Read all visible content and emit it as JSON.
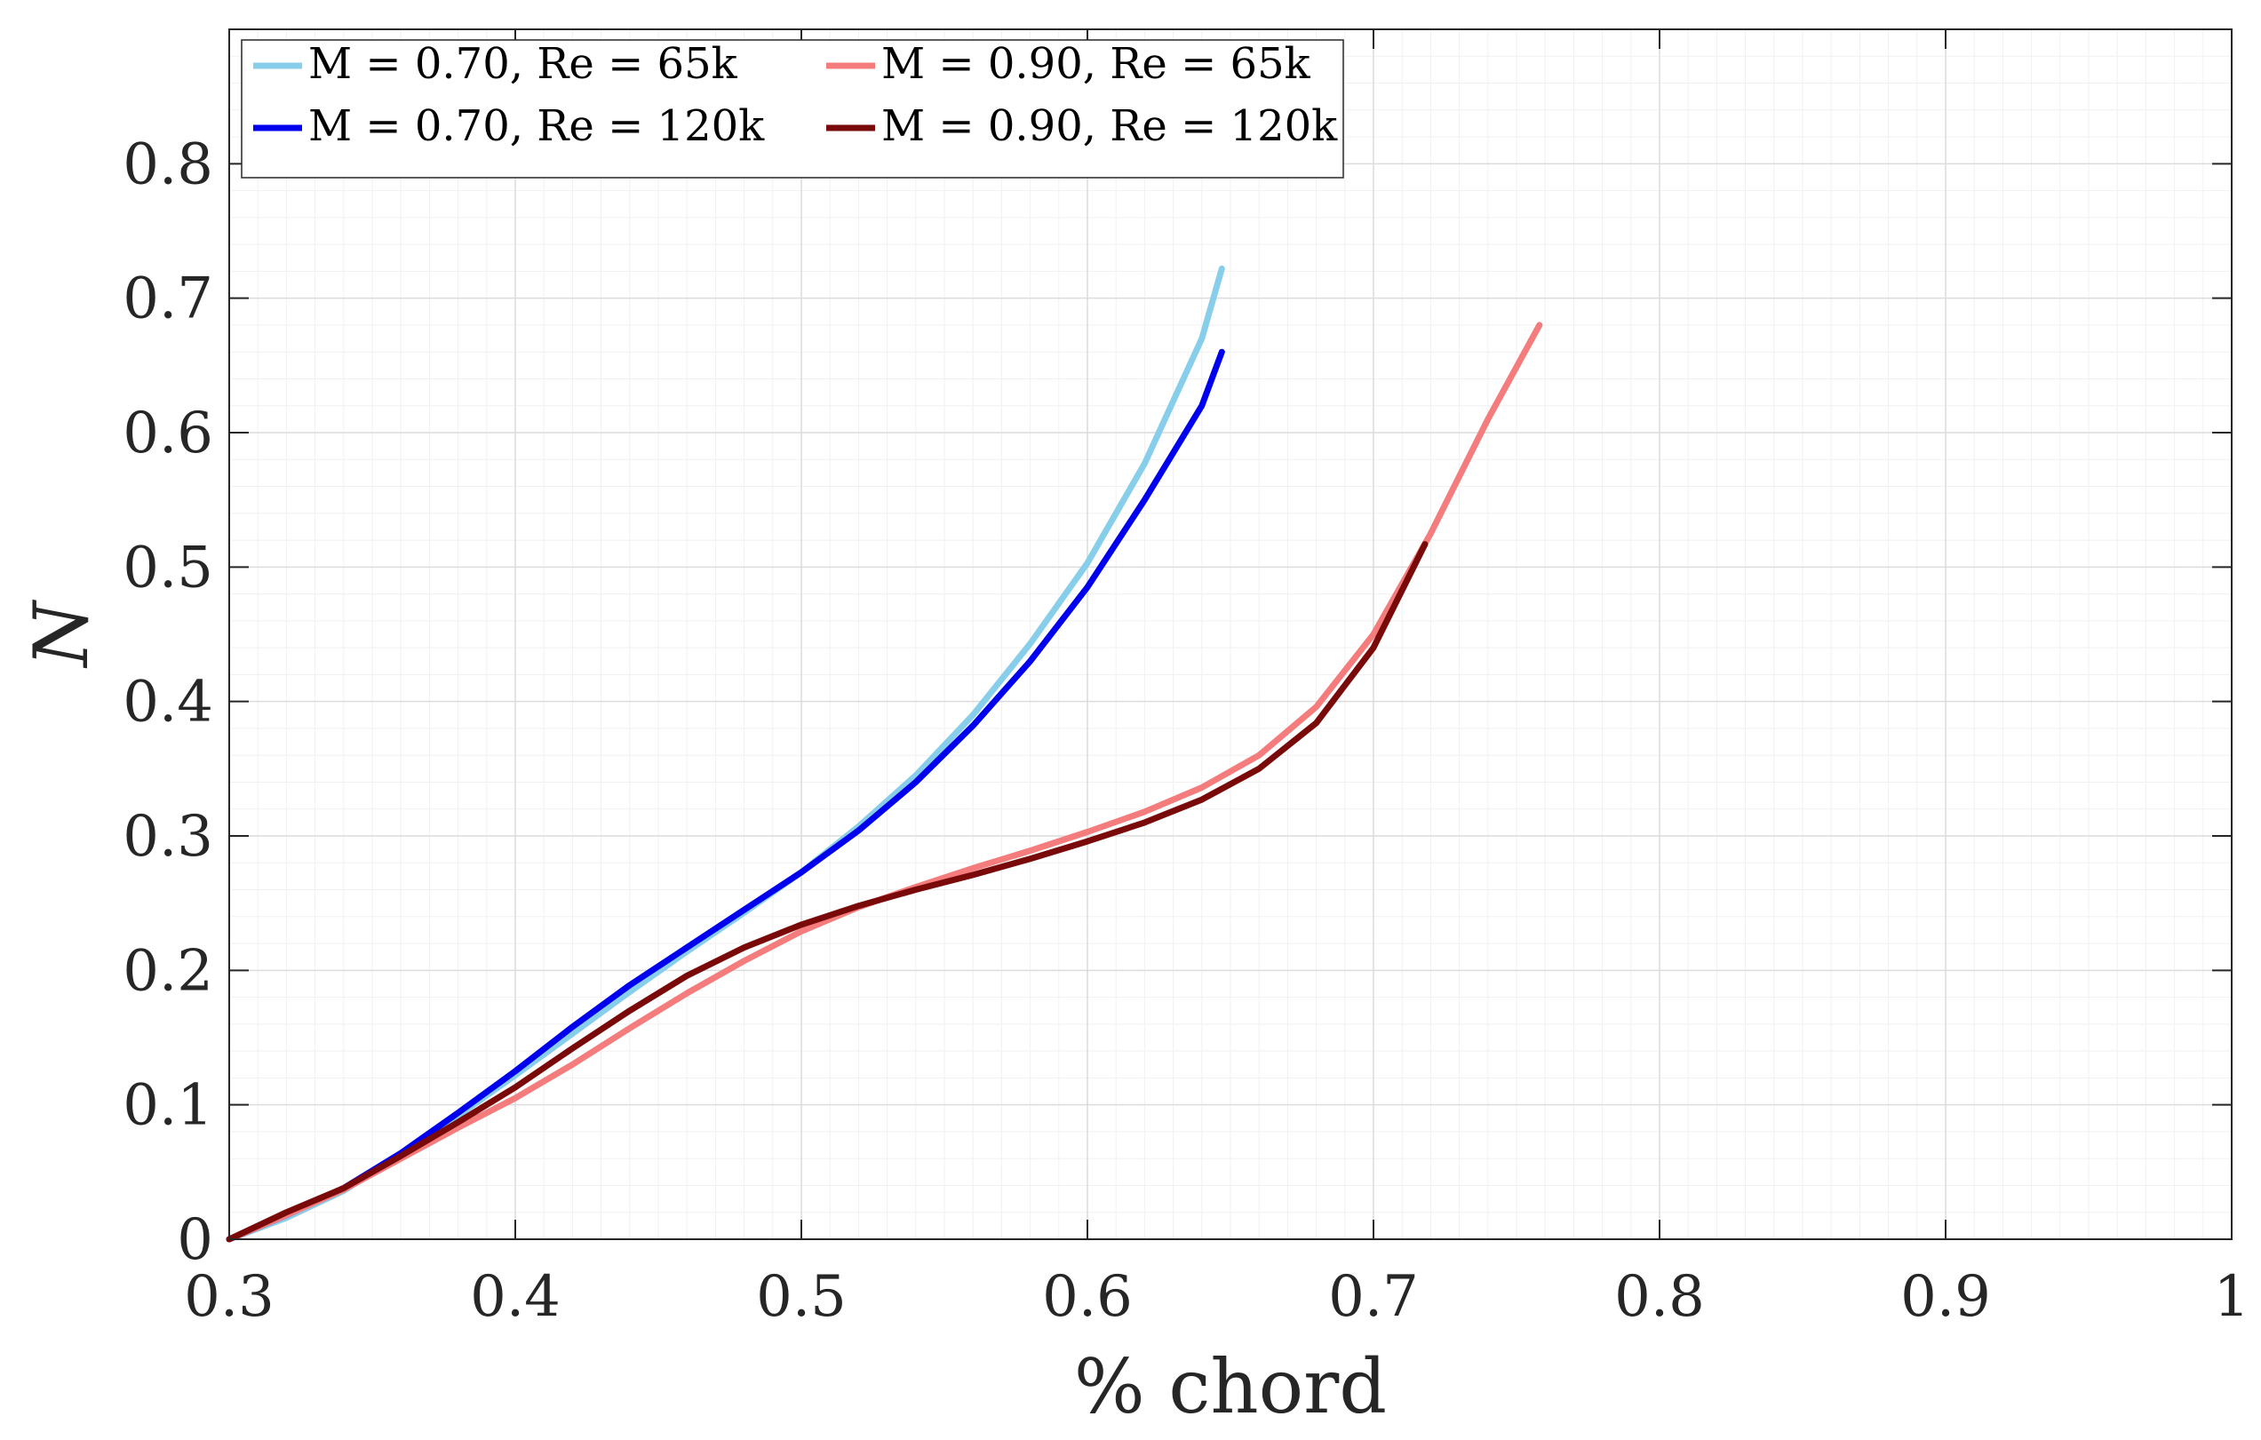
{
  "chart_data": {
    "type": "line",
    "xlabel": "% chord",
    "ylabel": "N",
    "xlim": [
      0.3,
      1.0
    ],
    "ylim": [
      0,
      0.9
    ],
    "xticks": [
      "0.3",
      "0.4",
      "0.5",
      "0.6",
      "0.7",
      "0.8",
      "0.9",
      "1"
    ],
    "yticks": [
      "0",
      "0.1",
      "0.2",
      "0.3",
      "0.4",
      "0.5",
      "0.6",
      "0.7",
      "0.8"
    ],
    "grid": true,
    "minor_grid": true,
    "legend_placement": "top-left",
    "series": [
      {
        "name": "M = 0.70, Re = 65k",
        "color": "#87CEEB",
        "x": [
          0.3,
          0.32,
          0.34,
          0.36,
          0.38,
          0.4,
          0.42,
          0.44,
          0.46,
          0.48,
          0.5,
          0.52,
          0.54,
          0.56,
          0.58,
          0.6,
          0.62,
          0.64,
          0.647
        ],
        "y": [
          0.0,
          0.016,
          0.036,
          0.063,
          0.092,
          0.122,
          0.153,
          0.184,
          0.214,
          0.243,
          0.273,
          0.307,
          0.345,
          0.39,
          0.443,
          0.503,
          0.577,
          0.67,
          0.722
        ]
      },
      {
        "name": "M = 0.70, Re = 120k",
        "color": "#0000EE",
        "x": [
          0.3,
          0.32,
          0.34,
          0.36,
          0.38,
          0.4,
          0.42,
          0.44,
          0.46,
          0.48,
          0.5,
          0.52,
          0.54,
          0.56,
          0.58,
          0.6,
          0.62,
          0.64,
          0.647
        ],
        "y": [
          0.0,
          0.018,
          0.038,
          0.064,
          0.094,
          0.125,
          0.158,
          0.189,
          0.217,
          0.245,
          0.273,
          0.304,
          0.34,
          0.382,
          0.43,
          0.485,
          0.55,
          0.62,
          0.66
        ]
      },
      {
        "name": "M = 0.90, Re = 65k",
        "color": "#F47C7C",
        "x": [
          0.3,
          0.32,
          0.34,
          0.36,
          0.38,
          0.4,
          0.42,
          0.44,
          0.46,
          0.48,
          0.5,
          0.52,
          0.54,
          0.56,
          0.58,
          0.6,
          0.62,
          0.64,
          0.66,
          0.68,
          0.7,
          0.72,
          0.74,
          0.758
        ],
        "y": [
          0.0,
          0.018,
          0.037,
          0.06,
          0.083,
          0.105,
          0.13,
          0.157,
          0.183,
          0.207,
          0.229,
          0.247,
          0.262,
          0.276,
          0.289,
          0.303,
          0.318,
          0.336,
          0.36,
          0.396,
          0.45,
          0.525,
          0.61,
          0.68
        ]
      },
      {
        "name": "M = 0.90, Re = 120k",
        "color": "#7A0A0A",
        "x": [
          0.3,
          0.32,
          0.34,
          0.36,
          0.38,
          0.4,
          0.42,
          0.44,
          0.46,
          0.48,
          0.5,
          0.52,
          0.54,
          0.56,
          0.58,
          0.6,
          0.62,
          0.64,
          0.66,
          0.68,
          0.7,
          0.718
        ],
        "y": [
          0.0,
          0.02,
          0.038,
          0.062,
          0.087,
          0.113,
          0.142,
          0.17,
          0.196,
          0.217,
          0.234,
          0.248,
          0.26,
          0.271,
          0.283,
          0.296,
          0.31,
          0.327,
          0.35,
          0.384,
          0.44,
          0.517
        ]
      }
    ]
  }
}
